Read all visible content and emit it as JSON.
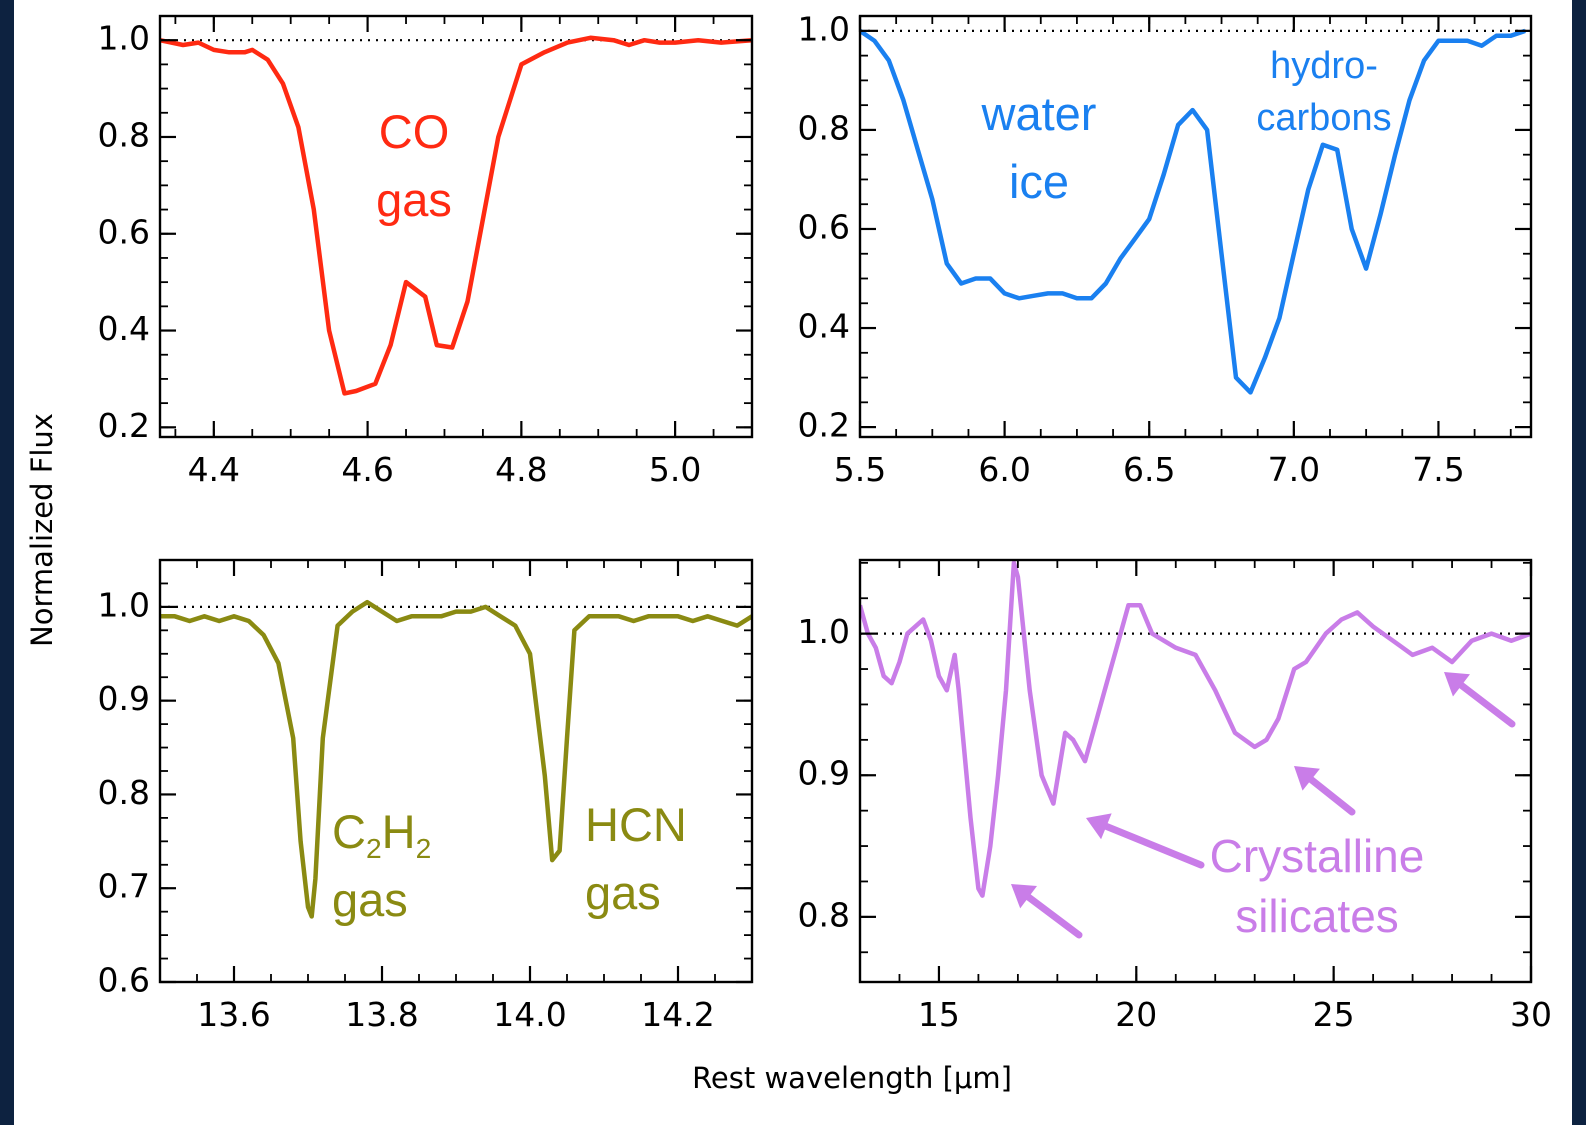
{
  "figure": {
    "ylabel": "Normalized Flux",
    "xlabel": "Rest wavelength [μm]"
  },
  "chart_data": [
    {
      "type": "line",
      "panel": "top-left",
      "color": "#ff2a12",
      "xlim": [
        4.33,
        5.1
      ],
      "ylim": [
        0.18,
        1.05
      ],
      "xticks": [
        4.4,
        4.6,
        4.8,
        5.0
      ],
      "xtick_labels": [
        "4.4",
        "4.6",
        "4.8",
        "5.0"
      ],
      "yticks": [
        0.2,
        0.4,
        0.6,
        0.8,
        1.0
      ],
      "ytick_labels": [
        "0.2",
        "0.4",
        "0.6",
        "0.8",
        "1.0"
      ],
      "reference_line": 1.0,
      "annotations": [
        {
          "lines": [
            "CO",
            "gas"
          ]
        }
      ],
      "series": [
        {
          "x": [
            4.33,
            4.36,
            4.38,
            4.4,
            4.42,
            4.44,
            4.45,
            4.47,
            4.49,
            4.51,
            4.53,
            4.55,
            4.57,
            4.585,
            4.61,
            4.63,
            4.65,
            4.675,
            4.69,
            4.71,
            4.73,
            4.75,
            4.77,
            4.8,
            4.83,
            4.86,
            4.89,
            4.92,
            4.94,
            4.96,
            4.98,
            5.0,
            5.03,
            5.06,
            5.1
          ],
          "y": [
            1.0,
            0.99,
            0.995,
            0.98,
            0.975,
            0.975,
            0.98,
            0.96,
            0.91,
            0.82,
            0.65,
            0.4,
            0.27,
            0.275,
            0.29,
            0.37,
            0.5,
            0.47,
            0.37,
            0.365,
            0.46,
            0.63,
            0.8,
            0.95,
            0.975,
            0.995,
            1.005,
            1.0,
            0.99,
            1.0,
            0.995,
            0.995,
            1.0,
            0.995,
            1.0
          ]
        }
      ]
    },
    {
      "type": "line",
      "panel": "top-right",
      "color": "#1a80f0",
      "xlim": [
        5.5,
        7.82
      ],
      "ylim": [
        0.18,
        1.03
      ],
      "xticks": [
        5.5,
        6.0,
        6.5,
        7.0,
        7.5
      ],
      "xtick_labels": [
        "5.5",
        "6.0",
        "6.5",
        "7.0",
        "7.5"
      ],
      "yticks": [
        0.2,
        0.4,
        0.6,
        0.8,
        1.0
      ],
      "ytick_labels": [
        "0.2",
        "0.4",
        "0.6",
        "0.8",
        "1.0"
      ],
      "reference_line": 1.0,
      "annotations": [
        {
          "lines": [
            "water",
            "ice"
          ]
        },
        {
          "lines": [
            "hydro-",
            "carbons"
          ]
        }
      ],
      "series": [
        {
          "x": [
            5.5,
            5.55,
            5.6,
            5.65,
            5.7,
            5.75,
            5.8,
            5.85,
            5.9,
            5.95,
            6.0,
            6.05,
            6.1,
            6.15,
            6.2,
            6.25,
            6.3,
            6.35,
            6.4,
            6.45,
            6.5,
            6.55,
            6.6,
            6.65,
            6.7,
            6.75,
            6.8,
            6.85,
            6.9,
            6.95,
            7.0,
            7.05,
            7.1,
            7.15,
            7.2,
            7.25,
            7.3,
            7.35,
            7.4,
            7.45,
            7.5,
            7.55,
            7.6,
            7.65,
            7.7,
            7.75,
            7.8
          ],
          "y": [
            1.0,
            0.98,
            0.94,
            0.86,
            0.76,
            0.66,
            0.53,
            0.49,
            0.5,
            0.5,
            0.47,
            0.46,
            0.465,
            0.47,
            0.47,
            0.46,
            0.46,
            0.49,
            0.54,
            0.58,
            0.62,
            0.71,
            0.81,
            0.84,
            0.8,
            0.55,
            0.3,
            0.27,
            0.34,
            0.42,
            0.55,
            0.68,
            0.77,
            0.76,
            0.6,
            0.52,
            0.63,
            0.75,
            0.86,
            0.94,
            0.98,
            0.98,
            0.98,
            0.97,
            0.99,
            0.99,
            1.0
          ]
        }
      ]
    },
    {
      "type": "line",
      "panel": "bottom-left",
      "color": "#8a8a12",
      "xlim": [
        13.5,
        14.3
      ],
      "ylim": [
        0.6,
        1.05
      ],
      "xticks": [
        13.6,
        13.8,
        14.0,
        14.2
      ],
      "xtick_labels": [
        "13.6",
        "13.8",
        "14.0",
        "14.2"
      ],
      "yticks": [
        0.6,
        0.7,
        0.8,
        0.9,
        1.0
      ],
      "ytick_labels": [
        "0.6",
        "0.7",
        "0.8",
        "0.9",
        "1.0"
      ],
      "reference_line": 1.0,
      "annotations": [
        {
          "lines": [
            "C2H2",
            "gas"
          ]
        },
        {
          "lines": [
            "HCN",
            "gas"
          ]
        }
      ],
      "series": [
        {
          "x": [
            13.5,
            13.52,
            13.54,
            13.56,
            13.58,
            13.6,
            13.62,
            13.64,
            13.66,
            13.68,
            13.69,
            13.7,
            13.705,
            13.71,
            13.72,
            13.74,
            13.76,
            13.78,
            13.8,
            13.82,
            13.84,
            13.86,
            13.88,
            13.9,
            13.92,
            13.94,
            13.96,
            13.98,
            14.0,
            14.02,
            14.03,
            14.04,
            14.05,
            14.06,
            14.08,
            14.1,
            14.12,
            14.14,
            14.16,
            14.18,
            14.2,
            14.22,
            14.24,
            14.26,
            14.28,
            14.3
          ],
          "y": [
            0.99,
            0.99,
            0.985,
            0.99,
            0.985,
            0.99,
            0.985,
            0.97,
            0.94,
            0.86,
            0.75,
            0.68,
            0.67,
            0.71,
            0.86,
            0.98,
            0.995,
            1.005,
            0.995,
            0.985,
            0.99,
            0.99,
            0.99,
            0.995,
            0.995,
            1.0,
            0.99,
            0.98,
            0.95,
            0.82,
            0.73,
            0.74,
            0.86,
            0.975,
            0.99,
            0.99,
            0.99,
            0.985,
            0.99,
            0.99,
            0.99,
            0.985,
            0.99,
            0.985,
            0.98,
            0.99
          ]
        }
      ]
    },
    {
      "type": "line",
      "panel": "bottom-right",
      "color": "#c97de8",
      "xlim": [
        13.0,
        30.0
      ],
      "ylim": [
        0.754,
        1.052
      ],
      "xticks": [
        15,
        20,
        25,
        30
      ],
      "xtick_labels": [
        "15",
        "20",
        "25",
        "30"
      ],
      "yticks": [
        0.8,
        0.9,
        1.0
      ],
      "ytick_labels": [
        "0.8",
        "0.9",
        "1.0"
      ],
      "reference_line": 1.0,
      "annotations": [
        {
          "lines": [
            "Crystalline",
            "silicates"
          ]
        }
      ],
      "series": [
        {
          "x": [
            13.0,
            13.2,
            13.4,
            13.6,
            13.8,
            14.0,
            14.2,
            14.4,
            14.6,
            14.8,
            15.0,
            15.2,
            15.4,
            15.5,
            15.6,
            15.8,
            16.0,
            16.1,
            16.3,
            16.5,
            16.7,
            16.9,
            17.0,
            17.3,
            17.6,
            17.9,
            18.2,
            18.4,
            18.7,
            18.9,
            19.2,
            19.5,
            19.8,
            20.1,
            20.4,
            20.7,
            21.0,
            21.5,
            22.0,
            22.5,
            23.0,
            23.3,
            23.6,
            24.0,
            24.3,
            24.8,
            25.2,
            25.6,
            26.0,
            26.5,
            27.0,
            27.5,
            28.0,
            28.5,
            29.0,
            29.5,
            30.0
          ],
          "y": [
            1.02,
            1.0,
            0.99,
            0.97,
            0.965,
            0.98,
            1.0,
            1.005,
            1.01,
            0.995,
            0.97,
            0.96,
            0.985,
            0.96,
            0.93,
            0.87,
            0.82,
            0.815,
            0.85,
            0.9,
            0.96,
            1.05,
            1.04,
            0.96,
            0.9,
            0.88,
            0.93,
            0.925,
            0.91,
            0.93,
            0.96,
            0.99,
            1.02,
            1.02,
            1.0,
            0.995,
            0.99,
            0.985,
            0.96,
            0.93,
            0.92,
            0.925,
            0.94,
            0.975,
            0.98,
            1.0,
            1.01,
            1.015,
            1.005,
            0.995,
            0.985,
            0.99,
            0.98,
            0.995,
            1.0,
            0.995,
            1.0
          ]
        }
      ]
    }
  ]
}
